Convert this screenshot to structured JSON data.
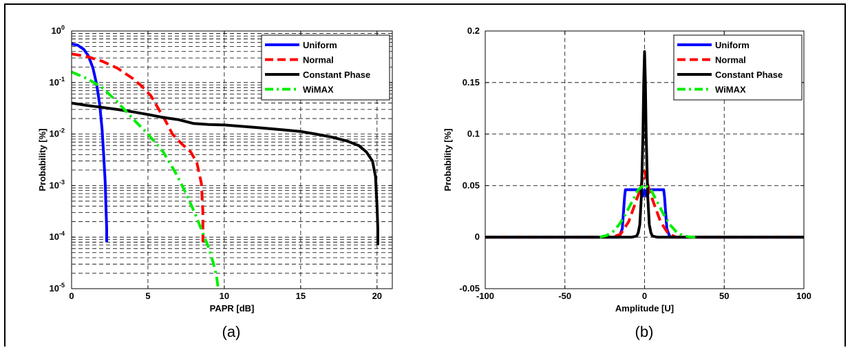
{
  "figure": {
    "captions": [
      "(a)",
      "(b)"
    ]
  },
  "chart_data": [
    {
      "type": "line",
      "panel": "(a)",
      "xlabel": "PAPR [dB]",
      "ylabel": "Probability [%]",
      "xlim": [
        0,
        21
      ],
      "ylim": [
        1e-05,
        1
      ],
      "yscale": "log",
      "grid": true,
      "legend_position": "top-right",
      "x_ticks": [
        0,
        5,
        10,
        15,
        20
      ],
      "y_ticks": [
        1,
        0.1,
        0.01,
        0.001,
        0.0001,
        1e-05
      ],
      "y_tick_labels": [
        {
          "base": "10",
          "exp": "0"
        },
        {
          "base": "10",
          "exp": "-1"
        },
        {
          "base": "10",
          "exp": "-2"
        },
        {
          "base": "10",
          "exp": "-3"
        },
        {
          "base": "10",
          "exp": "-4"
        },
        {
          "base": "10",
          "exp": "-5"
        }
      ],
      "series": [
        {
          "name": "Uniform",
          "color": "#0000ff",
          "dash": "solid",
          "x": [
            0,
            0.4,
            0.8,
            1.1,
            1.4,
            1.65,
            1.85,
            2.0,
            2.1,
            2.2,
            2.25,
            2.3,
            2.3
          ],
          "y": [
            0.56,
            0.53,
            0.44,
            0.33,
            0.19,
            0.09,
            0.035,
            0.012,
            0.004,
            0.0012,
            0.0004,
            0.00015,
            8e-05
          ]
        },
        {
          "name": "Normal",
          "color": "#ff0000",
          "dash": "dashed",
          "x": [
            0,
            1,
            2,
            3,
            4,
            4.6,
            5.2,
            5.8,
            6.2,
            6.6,
            7.2,
            7.8,
            8.2,
            8.5,
            8.6,
            8.6
          ],
          "y": [
            0.36,
            0.32,
            0.26,
            0.19,
            0.12,
            0.085,
            0.055,
            0.027,
            0.017,
            0.01,
            0.0065,
            0.0045,
            0.0028,
            0.0011,
            0.0003,
            8e-05
          ]
        },
        {
          "name": "Constant Phase",
          "color": "#000000",
          "dash": "solid",
          "x": [
            0,
            1,
            2,
            3,
            4,
            5,
            6,
            7,
            8,
            9,
            10,
            12,
            14,
            15,
            16,
            17,
            18,
            18.8,
            19.3,
            19.7,
            19.9,
            20,
            20.05,
            20.05
          ],
          "y": [
            0.04,
            0.036,
            0.033,
            0.03,
            0.027,
            0.024,
            0.021,
            0.019,
            0.016,
            0.0153,
            0.015,
            0.0135,
            0.012,
            0.0112,
            0.01,
            0.0088,
            0.0074,
            0.006,
            0.0045,
            0.003,
            0.0015,
            0.0004,
            0.00015,
            7e-05
          ]
        },
        {
          "name": "WiMAX",
          "color": "#00ee00",
          "dash": "dashdot",
          "x": [
            0,
            1,
            2,
            3,
            4,
            5,
            6,
            6.8,
            7.5,
            8.1,
            8.6,
            9.0,
            9.3,
            9.5,
            9.6
          ],
          "y": [
            0.16,
            0.12,
            0.08,
            0.042,
            0.02,
            0.01,
            0.0045,
            0.0018,
            0.0007,
            0.00028,
            0.00012,
            6e-05,
            3e-05,
            1.7e-05,
            1e-05
          ]
        }
      ]
    },
    {
      "type": "line",
      "panel": "(b)",
      "xlabel": "Amplitude [U]",
      "ylabel": "Probability [%]",
      "xlim": [
        -100,
        100
      ],
      "ylim": [
        -0.05,
        0.2
      ],
      "yscale": "linear",
      "grid": true,
      "legend_position": "top-right",
      "x_ticks": [
        -100,
        -50,
        0,
        50,
        100
      ],
      "y_ticks": [
        -0.05,
        0,
        0.05,
        0.1,
        0.15,
        0.2
      ],
      "series": [
        {
          "name": "Uniform",
          "color": "#0000ff",
          "dash": "solid",
          "x": [
            -100,
            -16,
            -14,
            -12.5,
            -12,
            -8,
            -4,
            -1,
            0,
            1,
            4,
            8,
            12,
            12.5,
            14,
            16,
            100
          ],
          "y": [
            0,
            0,
            0.008,
            0.04,
            0.046,
            0.046,
            0.046,
            0.04,
            0.046,
            0.04,
            0.046,
            0.046,
            0.046,
            0.04,
            0.008,
            0,
            0
          ]
        },
        {
          "name": "Normal",
          "color": "#ff0000",
          "dash": "dashed",
          "x": [
            -100,
            -20,
            -15,
            -10,
            -6,
            -3,
            -1.5,
            0,
            1.5,
            3,
            6,
            10,
            15,
            20,
            100
          ],
          "y": [
            0,
            0,
            0.003,
            0.015,
            0.032,
            0.045,
            0.055,
            0.064,
            0.055,
            0.045,
            0.032,
            0.015,
            0.003,
            0,
            0
          ]
        },
        {
          "name": "Constant Phase",
          "color": "#000000",
          "dash": "solid",
          "x": [
            -100,
            -8,
            -5,
            -4,
            -3,
            -2,
            -1,
            -0.5,
            0,
            0.5,
            1,
            2,
            3,
            4,
            5,
            8,
            100
          ],
          "y": [
            0,
            0,
            0.001,
            0.004,
            0.012,
            0.04,
            0.1,
            0.15,
            0.18,
            0.15,
            0.1,
            0.04,
            0.012,
            0.004,
            0.001,
            0,
            0
          ]
        },
        {
          "name": "WiMAX",
          "color": "#00ee00",
          "dash": "dashdot",
          "x": [
            -28,
            -24,
            -20,
            -16,
            -12,
            -8,
            -4,
            0,
            4,
            8,
            12,
            16,
            20,
            24,
            28,
            32
          ],
          "y": [
            0,
            0.0015,
            0.005,
            0.012,
            0.022,
            0.034,
            0.046,
            0.051,
            0.046,
            0.034,
            0.022,
            0.012,
            0.005,
            0.0015,
            0.0003,
            0
          ]
        }
      ]
    }
  ]
}
